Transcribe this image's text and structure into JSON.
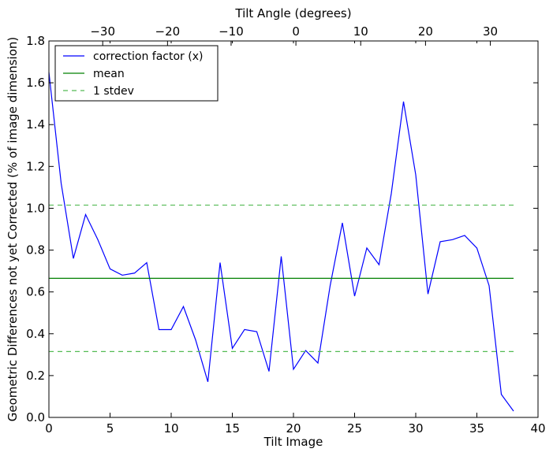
{
  "chart_data": {
    "type": "line",
    "xlabel": "Tilt Image",
    "ylabel": "Geometric Differences not yet Corrected (% of image dimension)",
    "top_xlabel": "Tilt Angle (degrees)",
    "xlim": [
      0,
      40
    ],
    "ylim": [
      0,
      1.8
    ],
    "xticks": [
      0,
      5,
      10,
      15,
      20,
      25,
      30,
      35,
      40
    ],
    "yticks": [
      0.0,
      0.2,
      0.4,
      0.6,
      0.8,
      1.0,
      1.2,
      1.4,
      1.6,
      1.8
    ],
    "top_ticks": {
      "labels": [
        "−30",
        "−20",
        "−10",
        "0",
        "10",
        "20",
        "30"
      ],
      "positions": [
        4.4,
        9.7,
        14.9,
        20.2,
        25.5,
        30.8,
        36.1
      ]
    },
    "legend_position": "top-left",
    "grid": false,
    "series": [
      {
        "name": "correction factor (x)",
        "color": "#0000ff",
        "style": "solid",
        "x": [
          0,
          1,
          2,
          3,
          4,
          5,
          6,
          7,
          8,
          9,
          10,
          11,
          12,
          13,
          14,
          15,
          16,
          17,
          18,
          19,
          20,
          21,
          22,
          23,
          24,
          25,
          26,
          27,
          28,
          29,
          30,
          31,
          32,
          33,
          34,
          35,
          36,
          37,
          38
        ],
        "y": [
          1.65,
          1.12,
          0.76,
          0.97,
          0.85,
          0.71,
          0.68,
          0.69,
          0.74,
          0.42,
          0.42,
          0.53,
          0.37,
          0.17,
          0.74,
          0.33,
          0.42,
          0.41,
          0.22,
          0.77,
          0.23,
          0.32,
          0.26,
          0.63,
          0.93,
          0.58,
          0.81,
          0.73,
          1.07,
          1.51,
          1.16,
          0.59,
          0.84,
          0.85,
          0.87,
          0.81,
          0.63,
          0.11,
          0.03
        ]
      },
      {
        "name": "mean",
        "color": "#008000",
        "style": "solid",
        "x": [
          0,
          38
        ],
        "y": [
          0.665,
          0.665
        ]
      },
      {
        "name": "1 stdev",
        "color": "#55bb55",
        "style": "dashed",
        "x": [
          0,
          38
        ],
        "y": [
          1.015,
          1.015
        ]
      },
      {
        "name": "",
        "color": "#55bb55",
        "style": "dashed",
        "x": [
          0,
          38
        ],
        "y": [
          0.315,
          0.315
        ]
      }
    ]
  }
}
